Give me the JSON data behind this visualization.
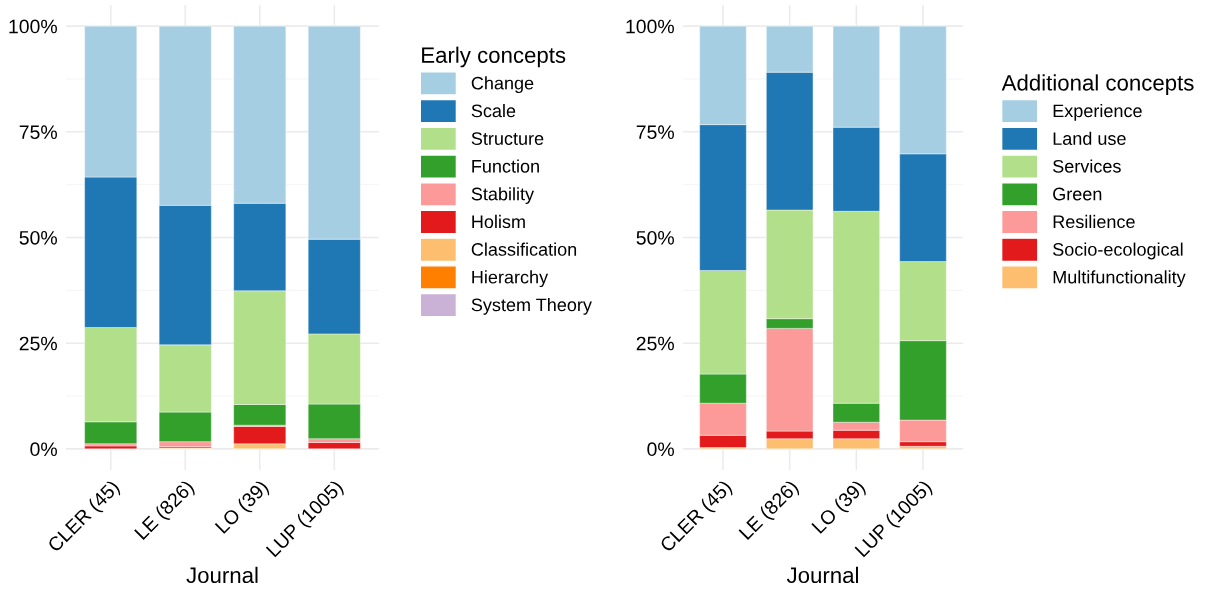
{
  "chart_data": [
    {
      "type": "bar",
      "stacked": true,
      "xlabel": "Journal",
      "legend_title": "Early concepts",
      "legend": "right",
      "grid": true,
      "categories": [
        "CLER (45)",
        "LE (826)",
        "LO (39)",
        "LUP (1005)"
      ],
      "ylim": [
        -5,
        105
      ],
      "yticks": [
        {
          "value": 0,
          "label": "0%"
        },
        {
          "value": 25,
          "label": "25%"
        },
        {
          "value": 50,
          "label": "50%"
        },
        {
          "value": 75,
          "label": "75%"
        },
        {
          "value": 100,
          "label": "100%"
        }
      ],
      "series": [
        {
          "name": "System Theory",
          "color": "#cab2d6",
          "values": [
            0,
            0,
            0,
            0
          ]
        },
        {
          "name": "Hierarchy",
          "color": "#ff7f00",
          "values": [
            0,
            0,
            0,
            0
          ]
        },
        {
          "name": "Classification",
          "color": "#fdbf6f",
          "values": [
            0,
            0.2,
            1.2,
            0
          ]
        },
        {
          "name": "Holism",
          "color": "#e31a1c",
          "values": [
            0.7,
            0.3,
            4.1,
            1.5
          ]
        },
        {
          "name": "Stability",
          "color": "#fb9a99",
          "values": [
            0.5,
            1.2,
            0.3,
            0.9
          ]
        },
        {
          "name": "Function",
          "color": "#33a02c",
          "values": [
            5.2,
            7.0,
            4.9,
            8.2
          ]
        },
        {
          "name": "Structure",
          "color": "#b2df8a",
          "values": [
            22.3,
            15.9,
            26.9,
            16.6
          ]
        },
        {
          "name": "Scale",
          "color": "#1f78b4",
          "values": [
            35.6,
            33.0,
            20.7,
            22.4
          ]
        },
        {
          "name": "Change",
          "color": "#a6cee3",
          "values": [
            35.7,
            42.4,
            41.9,
            50.4
          ]
        }
      ]
    },
    {
      "type": "bar",
      "stacked": true,
      "xlabel": "Journal",
      "legend_title": "Additional concepts",
      "legend": "right",
      "grid": true,
      "categories": [
        "CLER (45)",
        "LE (826)",
        "LO (39)",
        "LUP (1005)"
      ],
      "ylim": [
        -5,
        105
      ],
      "yticks": [
        {
          "value": 0,
          "label": "0%"
        },
        {
          "value": 25,
          "label": "25%"
        },
        {
          "value": 50,
          "label": "50%"
        },
        {
          "value": 75,
          "label": "75%"
        },
        {
          "value": 100,
          "label": "100%"
        }
      ],
      "series": [
        {
          "name": "Multifunctionality",
          "color": "#fdbf6f",
          "values": [
            0.3,
            2.4,
            2.4,
            0.6
          ]
        },
        {
          "name": "Socio-ecological",
          "color": "#e31a1c",
          "values": [
            2.9,
            1.8,
            2.0,
            1.1
          ]
        },
        {
          "name": "Resilience",
          "color": "#fb9a99",
          "values": [
            7.6,
            24.3,
            1.9,
            5.1
          ]
        },
        {
          "name": "Green",
          "color": "#33a02c",
          "values": [
            6.9,
            2.3,
            4.5,
            18.8
          ]
        },
        {
          "name": "Services",
          "color": "#b2df8a",
          "values": [
            24.5,
            25.7,
            45.4,
            18.7
          ]
        },
        {
          "name": "Land use",
          "color": "#1f78b4",
          "values": [
            34.5,
            32.6,
            19.9,
            25.5
          ]
        },
        {
          "name": "Experience",
          "color": "#a6cee3",
          "values": [
            23.3,
            10.9,
            23.9,
            30.2
          ]
        }
      ]
    }
  ]
}
